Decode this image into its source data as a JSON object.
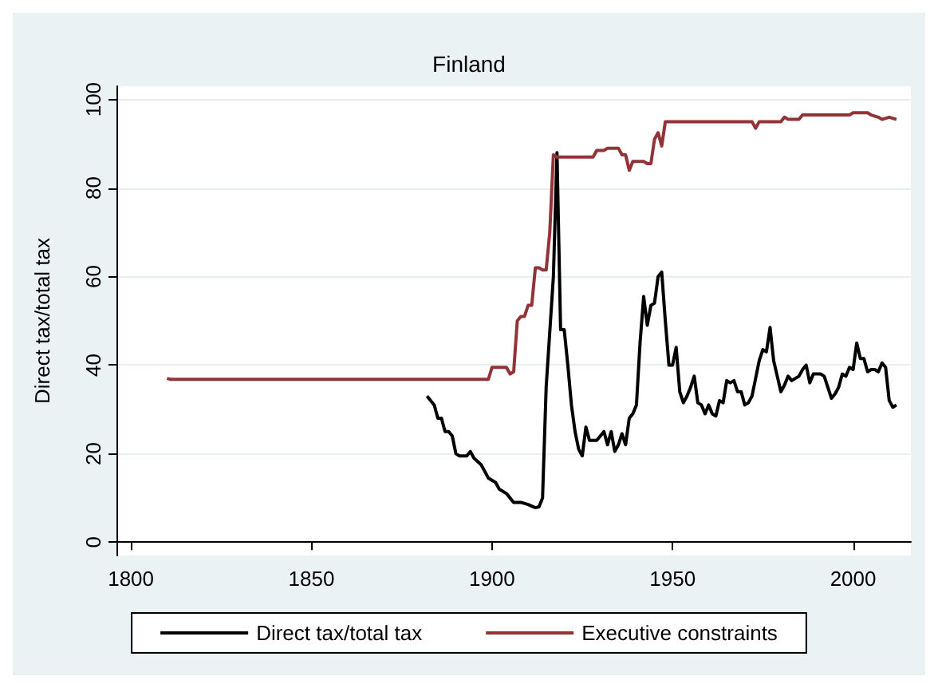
{
  "chart_data": {
    "type": "line",
    "title": "Finland",
    "ylabel": "Direct tax/total tax",
    "xlim": [
      1796,
      2016
    ],
    "xticks": [
      1800,
      1850,
      1900,
      1950,
      2000
    ],
    "ylim": [
      -3,
      103
    ],
    "yticks": [
      0,
      20,
      40,
      60,
      80,
      100
    ],
    "grid": "y",
    "legend": "bottom",
    "marker": "none",
    "line_style": "solid",
    "series": [
      {
        "name": "Direct tax/total tax",
        "color": "#000000",
        "x": [
          1882,
          1884,
          1885,
          1886,
          1887,
          1888,
          1889,
          1890,
          1891,
          1893,
          1894,
          1895,
          1897,
          1898,
          1899,
          1900,
          1901,
          1902,
          1904,
          1905,
          1906,
          1908,
          1910,
          1912,
          1913,
          1914,
          1915,
          1917,
          1918,
          1919,
          1920,
          1921,
          1922,
          1923,
          1924,
          1925,
          1926,
          1927,
          1929,
          1930,
          1931,
          1932,
          1933,
          1934,
          1935,
          1936,
          1937,
          1938,
          1939,
          1940,
          1941,
          1942,
          1943,
          1944,
          1945,
          1946,
          1947,
          1948,
          1949,
          1950,
          1951,
          1952,
          1953,
          1954,
          1955,
          1956,
          1957,
          1958,
          1959,
          1960,
          1961,
          1962,
          1963,
          1964,
          1965,
          1966,
          1967,
          1968,
          1969,
          1970,
          1971,
          1972,
          1973,
          1974,
          1975,
          1976,
          1977,
          1978,
          1979,
          1980,
          1981,
          1982,
          1983,
          1984,
          1985,
          1986,
          1987,
          1988,
          1989,
          1990,
          1991,
          1992,
          1993,
          1994,
          1995,
          1996,
          1997,
          1998,
          1999,
          2000,
          2001,
          2002,
          2003,
          2004,
          2005,
          2006,
          2007,
          2008,
          2009,
          2010,
          2011,
          2012
        ],
        "values": [
          33,
          31,
          28,
          28,
          25,
          25,
          24,
          20,
          19.5,
          19.5,
          20.5,
          19,
          17.5,
          16,
          14.5,
          14,
          13.5,
          12,
          11,
          10,
          9,
          9,
          8.5,
          7.8,
          8,
          10,
          35,
          60,
          88,
          48,
          48,
          40,
          31,
          25,
          21,
          19.5,
          26,
          23,
          23,
          24,
          25,
          22,
          25,
          20.5,
          22,
          24.5,
          22,
          28,
          29,
          31,
          45,
          55.5,
          49,
          53.5,
          54,
          60,
          61,
          50,
          40,
          40,
          44,
          34,
          31.5,
          33,
          35,
          37.5,
          31.5,
          31,
          29,
          31,
          29,
          28.5,
          32,
          31.5,
          36.5,
          36,
          36.5,
          34,
          34,
          31,
          31.5,
          33,
          37,
          41,
          43.5,
          43,
          48.5,
          41,
          37.5,
          34,
          35.5,
          37.5,
          36.5,
          37,
          37.5,
          39,
          40,
          36,
          38,
          38,
          38,
          37.5,
          35,
          32.5,
          33.5,
          35,
          38,
          37.5,
          39.5,
          39,
          45,
          41.5,
          41.5,
          38.5,
          39,
          39,
          38.5,
          40.5,
          39.5,
          32,
          30.5,
          31
        ]
      },
      {
        "name": "Executive constraints",
        "color": "#923437",
        "x": [
          1810,
          1811,
          1899,
          1900,
          1904,
          1905,
          1906,
          1907,
          1908,
          1909,
          1910,
          1911,
          1912,
          1913,
          1914,
          1915,
          1916,
          1917,
          1918,
          1928,
          1929,
          1931,
          1932,
          1935,
          1936,
          1937,
          1938,
          1939,
          1942,
          1943,
          1944,
          1945,
          1946,
          1947,
          1948,
          1972,
          1973,
          1974,
          1980,
          1981,
          1982,
          1985,
          1986,
          1999,
          2000,
          2004,
          2005,
          2007,
          2008,
          2010,
          2012
        ],
        "values": [
          37,
          36.8,
          36.8,
          39.5,
          39.5,
          38,
          38.5,
          50,
          51,
          51,
          53.5,
          53.5,
          62,
          62,
          61.5,
          61.5,
          70,
          87.5,
          87,
          87,
          88.5,
          88.5,
          89,
          89,
          87.5,
          87.5,
          84,
          86,
          86,
          85.5,
          85.5,
          91,
          92.5,
          89.5,
          95,
          95,
          93.5,
          95,
          95,
          96,
          95.5,
          95.5,
          96.5,
          96.5,
          97,
          97,
          96.5,
          96,
          95.5,
          96,
          95.5
        ]
      }
    ]
  }
}
